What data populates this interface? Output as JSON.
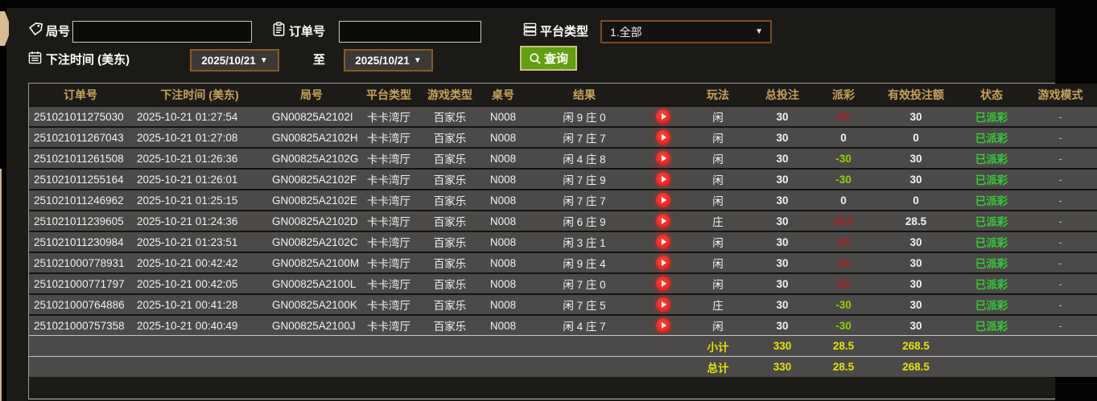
{
  "filters": {
    "game_no_label": "局号",
    "order_no_label": "订单号",
    "platform_label": "平台类型",
    "platform_value": "1.全部",
    "bet_time_label": "下注时间 (美东)",
    "date_from": "2025/10/21",
    "date_to": "2025/10/21",
    "to_label": "至",
    "search_label": "查询",
    "dropdown_arrow": "▼"
  },
  "colors": {
    "win_red": "#b22025",
    "lose_green": "#8fd400",
    "status_green": "#33cc33",
    "summary_yellow": "#e6e400",
    "header_gold": "#c8a258",
    "search_button_green": "#61a00f",
    "accent_tan": "#d8bb92"
  },
  "table": {
    "headers": [
      "订单号",
      "下注时间 (美东)",
      "局号",
      "平台类型",
      "游戏类型",
      "桌号",
      "结果",
      "",
      "玩法",
      "总投注",
      "派彩",
      "有效投注额",
      "状态",
      "游戏模式"
    ],
    "rows": [
      {
        "order": "251021011275030",
        "time": "2025-10-21 01:27:54",
        "game": "GN00825A2102I",
        "platform": "卡卡湾厅",
        "game_type": "百家乐",
        "table_no": "N008",
        "result": "闲 9 庄 0",
        "play_icon": true,
        "play_type": "闲",
        "total_bet": "30",
        "payout": "30",
        "payout_color": "red",
        "valid_bet": "30",
        "status": "已派彩",
        "mode": "-"
      },
      {
        "order": "251021011267043",
        "time": "2025-10-21 01:27:08",
        "game": "GN00825A2102H",
        "platform": "卡卡湾厅",
        "game_type": "百家乐",
        "table_no": "N008",
        "result": "闲 7 庄 7",
        "play_icon": true,
        "play_type": "闲",
        "total_bet": "30",
        "payout": "0",
        "payout_color": "white",
        "valid_bet": "0",
        "status": "已派彩",
        "mode": "-"
      },
      {
        "order": "251021011261508",
        "time": "2025-10-21 01:26:36",
        "game": "GN00825A2102G",
        "platform": "卡卡湾厅",
        "game_type": "百家乐",
        "table_no": "N008",
        "result": "闲 4 庄 8",
        "play_icon": true,
        "play_type": "闲",
        "total_bet": "30",
        "payout": "-30",
        "payout_color": "green",
        "valid_bet": "30",
        "status": "已派彩",
        "mode": "-"
      },
      {
        "order": "251021011255164",
        "time": "2025-10-21 01:26:01",
        "game": "GN00825A2102F",
        "platform": "卡卡湾厅",
        "game_type": "百家乐",
        "table_no": "N008",
        "result": "闲 7 庄 9",
        "play_icon": true,
        "play_type": "闲",
        "total_bet": "30",
        "payout": "-30",
        "payout_color": "green",
        "valid_bet": "30",
        "status": "已派彩",
        "mode": "-"
      },
      {
        "order": "251021011246962",
        "time": "2025-10-21 01:25:15",
        "game": "GN00825A2102E",
        "platform": "卡卡湾厅",
        "game_type": "百家乐",
        "table_no": "N008",
        "result": "闲 7 庄 7",
        "play_icon": true,
        "play_type": "闲",
        "total_bet": "30",
        "payout": "0",
        "payout_color": "white",
        "valid_bet": "0",
        "status": "已派彩",
        "mode": "-"
      },
      {
        "order": "251021011239605",
        "time": "2025-10-21 01:24:36",
        "game": "GN00825A2102D",
        "platform": "卡卡湾厅",
        "game_type": "百家乐",
        "table_no": "N008",
        "result": "闲 6 庄 9",
        "play_icon": true,
        "play_type": "庄",
        "total_bet": "30",
        "payout": "28.5",
        "payout_color": "red",
        "valid_bet": "28.5",
        "status": "已派彩",
        "mode": "-"
      },
      {
        "order": "251021011230984",
        "time": "2025-10-21 01:23:51",
        "game": "GN00825A2102C",
        "platform": "卡卡湾厅",
        "game_type": "百家乐",
        "table_no": "N008",
        "result": "闲 3 庄 1",
        "play_icon": true,
        "play_type": "闲",
        "total_bet": "30",
        "payout": "30",
        "payout_color": "red",
        "valid_bet": "30",
        "status": "已派彩",
        "mode": "-"
      },
      {
        "order": "251021000778931",
        "time": "2025-10-21 00:42:42",
        "game": "GN00825A2100M",
        "platform": "卡卡湾厅",
        "game_type": "百家乐",
        "table_no": "N008",
        "result": "闲 9 庄 4",
        "play_icon": true,
        "play_type": "闲",
        "total_bet": "30",
        "payout": "30",
        "payout_color": "red",
        "valid_bet": "30",
        "status": "已派彩",
        "mode": "-"
      },
      {
        "order": "251021000771797",
        "time": "2025-10-21 00:42:05",
        "game": "GN00825A2100L",
        "platform": "卡卡湾厅",
        "game_type": "百家乐",
        "table_no": "N008",
        "result": "闲 7 庄 0",
        "play_icon": true,
        "play_type": "闲",
        "total_bet": "30",
        "payout": "30",
        "payout_color": "red",
        "valid_bet": "30",
        "status": "已派彩",
        "mode": "-"
      },
      {
        "order": "251021000764886",
        "time": "2025-10-21 00:41:28",
        "game": "GN00825A2100K",
        "platform": "卡卡湾厅",
        "game_type": "百家乐",
        "table_no": "N008",
        "result": "闲 7 庄 5",
        "play_icon": true,
        "play_type": "庄",
        "total_bet": "30",
        "payout": "-30",
        "payout_color": "green",
        "valid_bet": "30",
        "status": "已派彩",
        "mode": "-"
      },
      {
        "order": "251021000757358",
        "time": "2025-10-21 00:40:49",
        "game": "GN00825A2100J",
        "platform": "卡卡湾厅",
        "game_type": "百家乐",
        "table_no": "N008",
        "result": "闲 4 庄 7",
        "play_icon": true,
        "play_type": "闲",
        "total_bet": "30",
        "payout": "-30",
        "payout_color": "green",
        "valid_bet": "30",
        "status": "已派彩",
        "mode": "-"
      }
    ],
    "summary": [
      {
        "label": "小计",
        "total_bet": "330",
        "payout": "28.5",
        "valid_bet": "268.5"
      },
      {
        "label": "总计",
        "total_bet": "330",
        "payout": "28.5",
        "valid_bet": "268.5"
      }
    ]
  }
}
